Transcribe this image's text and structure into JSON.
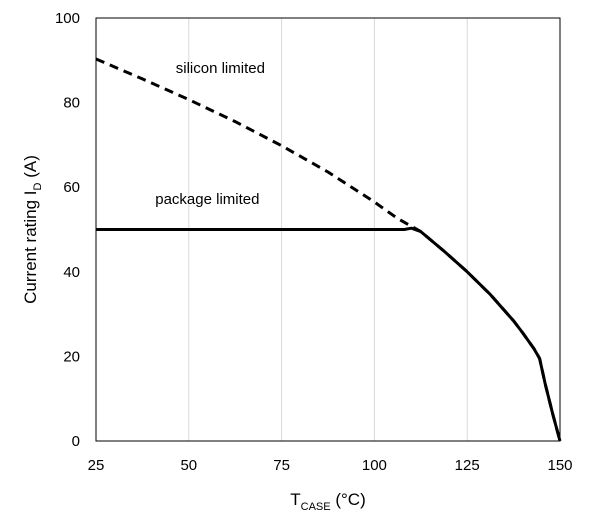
{
  "chart_data": {
    "type": "line",
    "xlabel": {
      "main": "T",
      "sub": "CASE",
      "suffix": " (°C)"
    },
    "ylabel": {
      "main": "Current rating I",
      "sub": "D",
      "suffix": " (A)"
    },
    "xlim": [
      25,
      150
    ],
    "ylim": [
      0,
      100
    ],
    "x_ticks": [
      25,
      50,
      75,
      100,
      125,
      150
    ],
    "y_ticks": [
      0,
      20,
      40,
      60,
      80,
      100
    ],
    "x_tick_labels": [
      "25",
      "50",
      "75",
      "100",
      "125",
      "150"
    ],
    "y_tick_labels": [
      "0",
      "20",
      "40",
      "60",
      "80",
      "100"
    ],
    "grid": "vertical",
    "series": [
      {
        "style": "dashed",
        "color": "#000000",
        "points": [
          [
            25,
            90.3
          ],
          [
            37.5,
            85.6
          ],
          [
            50,
            80.7
          ],
          [
            62.5,
            75.5
          ],
          [
            75,
            69.8
          ],
          [
            87.5,
            63.6
          ],
          [
            100,
            56.5
          ],
          [
            106.25,
            52.6
          ],
          [
            112.5,
            49.5
          ],
          [
            118.75,
            44.9
          ],
          [
            125,
            40.0
          ],
          [
            131.25,
            34.6
          ],
          [
            137.5,
            28.4
          ],
          [
            140,
            25.5
          ],
          [
            143,
            21.8
          ],
          [
            144.5,
            19.5
          ],
          [
            146,
            13.5
          ],
          [
            148,
            6.5
          ],
          [
            150,
            0
          ]
        ]
      },
      {
        "style": "solid",
        "color": "#000000",
        "points": [
          [
            25,
            50
          ],
          [
            100,
            50
          ],
          [
            108,
            50
          ],
          [
            110,
            50.3
          ],
          [
            112.5,
            49.5
          ],
          [
            118.75,
            44.9
          ],
          [
            125,
            40.0
          ],
          [
            131.25,
            34.6
          ],
          [
            137.5,
            28.4
          ],
          [
            140,
            25.5
          ],
          [
            143,
            21.8
          ],
          [
            144.5,
            19.5
          ],
          [
            146,
            13.5
          ],
          [
            148,
            6.5
          ],
          [
            150,
            0
          ]
        ]
      }
    ],
    "annotations": [
      {
        "text": "silicon limited",
        "x": 58.5,
        "y": 87
      },
      {
        "text": "package limited",
        "x": 55,
        "y": 56
      }
    ]
  }
}
